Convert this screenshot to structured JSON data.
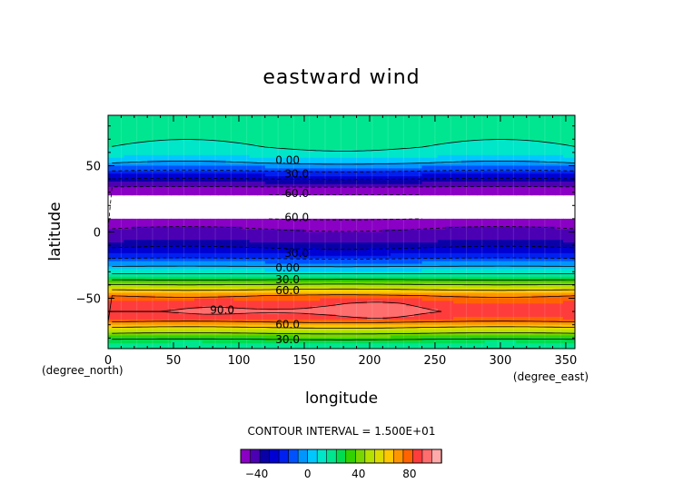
{
  "chart_data": {
    "type": "contour",
    "title": "eastward wind",
    "xlabel": "longitude",
    "ylabel": "latitude",
    "x_units": "(degree_east)",
    "y_units": "(degree_north)",
    "xlim": [
      0,
      357
    ],
    "ylim": [
      -88,
      88
    ],
    "x_ticks": [
      0,
      50,
      100,
      150,
      200,
      250,
      300,
      350
    ],
    "y_ticks": [
      50,
      0,
      -50
    ],
    "contour_interval_text": "CONTOUR INTERVAL = 1.500E+01",
    "contour_interval": 15,
    "missing_band_lat": [
      10,
      28
    ],
    "contour_labels": [
      {
        "text": "0.00",
        "lon": 128,
        "lat": 54
      },
      {
        "text": "30.0",
        "lon": 135,
        "lat": 44
      },
      {
        "text": "60.0",
        "lon": 135,
        "lat": 29
      },
      {
        "text": "60.0",
        "lon": 135,
        "lat": 11
      },
      {
        "text": "30.0",
        "lon": 135,
        "lat": -16
      },
      {
        "text": "0.00",
        "lon": 128,
        "lat": -27
      },
      {
        "text": "30.0",
        "lon": 128,
        "lat": -36
      },
      {
        "text": "60.0",
        "lon": 128,
        "lat": -44
      },
      {
        "text": "90.0",
        "lon": 78,
        "lat": -59
      },
      {
        "text": "60.0",
        "lon": 128,
        "lat": -70
      },
      {
        "text": "30.0",
        "lon": 128,
        "lat": -81
      }
    ],
    "zonal_mean_profile": {
      "lat": [
        88,
        80,
        72,
        64,
        58,
        52,
        46,
        40,
        34,
        28,
        10,
        6,
        0,
        -6,
        -12,
        -18,
        -24,
        -30,
        -36,
        -42,
        -48,
        -54,
        -60,
        -66,
        -72,
        -78,
        -84,
        -88
      ],
      "u": [
        22,
        20,
        18,
        15,
        10,
        0,
        -15,
        -30,
        -45,
        -60,
        -60,
        -50,
        -42,
        -40,
        -30,
        -20,
        -5,
        10,
        30,
        55,
        75,
        85,
        90,
        82,
        60,
        40,
        20,
        15
      ]
    },
    "colorbar": {
      "min": -52.5,
      "step": 7.5,
      "colors": [
        "#8a00c4",
        "#4c00b4",
        "#0a00a8",
        "#0000d2",
        "#0020f0",
        "#0052ff",
        "#0096ff",
        "#00c8ff",
        "#00e6c8",
        "#00e690",
        "#00dc50",
        "#32d200",
        "#78d700",
        "#b4e100",
        "#dcdc00",
        "#ffc800",
        "#ff9600",
        "#ff6400",
        "#ff3c3c",
        "#ff6e6e",
        "#ffaaaa"
      ],
      "tick_values": [
        -40,
        0,
        40,
        80
      ],
      "tick_labels": [
        "−40",
        "0",
        "40",
        "80"
      ]
    }
  }
}
